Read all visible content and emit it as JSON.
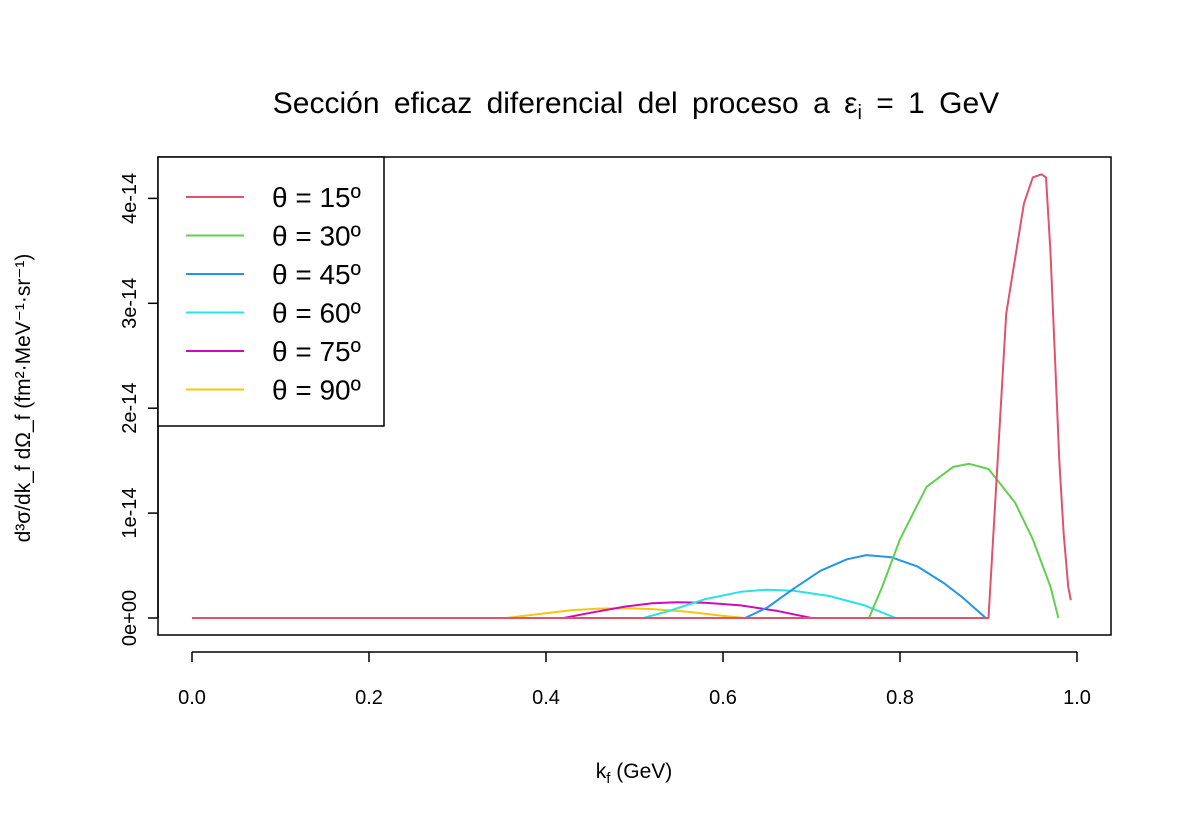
{
  "chart_data": {
    "type": "line",
    "title": {
      "text": "Sección eficaz diferencial del proceso a ",
      "symbol": "ε",
      "subscript": "i",
      "rest": " = 1 GeV"
    },
    "xlabel": {
      "base": "k",
      "sub": "f",
      "rest": " (GeV)"
    },
    "ylabel": "d³σ/dk_f dΩ_f (fm²·MeV⁻¹·sr⁻¹)",
    "xlim": [
      0.0,
      1.0
    ],
    "ylim": [
      0,
      4.4e-14
    ],
    "x_ticks": [
      0.0,
      0.2,
      0.4,
      0.6,
      0.8,
      1.0
    ],
    "x_tick_labels": [
      "0.0",
      "0.2",
      "0.4",
      "0.6",
      "0.8",
      "1.0"
    ],
    "y_ticks": [
      0,
      1e-14,
      2e-14,
      3e-14,
      4e-14
    ],
    "y_tick_labels": [
      "0e+00",
      "1e-14",
      "2e-14",
      "3e-14",
      "4e-14"
    ],
    "grid": false,
    "legend_position": "top-left",
    "series": [
      {
        "name": "θ = 15º",
        "color": "#DF536B",
        "x": [
          0.0,
          0.897,
          0.9,
          0.92,
          0.94,
          0.95,
          0.96,
          0.965,
          0.97,
          0.975,
          0.98,
          0.985,
          0.99,
          0.993
        ],
        "y": [
          0,
          0,
          0.0,
          2.9e-14,
          3.95e-14,
          4.2e-14,
          4.23e-14,
          4.2e-14,
          3.5e-14,
          2.5e-14,
          1.5e-14,
          8e-15,
          3e-15,
          1.7e-15
        ]
      },
      {
        "name": "θ = 30º",
        "color": "#61D04F",
        "x": [
          0.0,
          0.765,
          0.78,
          0.8,
          0.83,
          0.86,
          0.878,
          0.9,
          0.93,
          0.95,
          0.97,
          0.979
        ],
        "y": [
          0,
          0,
          3e-15,
          7.5e-15,
          1.25e-14,
          1.44e-14,
          1.47e-14,
          1.42e-14,
          1.1e-14,
          7.5e-15,
          3e-15,
          0
        ]
      },
      {
        "name": "θ = 45º",
        "color": "#2297E6",
        "x": [
          0.0,
          0.625,
          0.65,
          0.68,
          0.71,
          0.74,
          0.762,
          0.79,
          0.82,
          0.85,
          0.87,
          0.897
        ],
        "y": [
          0,
          0,
          1e-15,
          2.8e-15,
          4.5e-15,
          5.6e-15,
          6e-15,
          5.8e-15,
          4.9e-15,
          3.3e-15,
          2e-15,
          0
        ]
      },
      {
        "name": "θ = 60º",
        "color": "#28E2E5",
        "x": [
          0.0,
          0.51,
          0.54,
          0.58,
          0.62,
          0.65,
          0.68,
          0.72,
          0.76,
          0.795
        ],
        "y": [
          0,
          0,
          7e-16,
          1.8e-15,
          2.5e-15,
          2.7e-15,
          2.6e-15,
          2.1e-15,
          1.2e-15,
          0
        ]
      },
      {
        "name": "θ = 75º",
        "color": "#CD0BBC",
        "x": [
          0.0,
          0.42,
          0.45,
          0.49,
          0.52,
          0.548,
          0.58,
          0.62,
          0.66,
          0.7
        ],
        "y": [
          0,
          0,
          5e-16,
          1.1e-15,
          1.4e-15,
          1.5e-15,
          1.45e-15,
          1.2e-15,
          7e-16,
          0
        ]
      },
      {
        "name": "θ = 90º",
        "color": "#F5C710",
        "x": [
          0.0,
          0.355,
          0.39,
          0.43,
          0.46,
          0.49,
          0.52,
          0.56,
          0.6,
          0.625
        ],
        "y": [
          0,
          0,
          3.5e-16,
          7.5e-16,
          9e-16,
          9.3e-16,
          8.5e-16,
          6e-16,
          2e-16,
          0
        ]
      }
    ]
  }
}
